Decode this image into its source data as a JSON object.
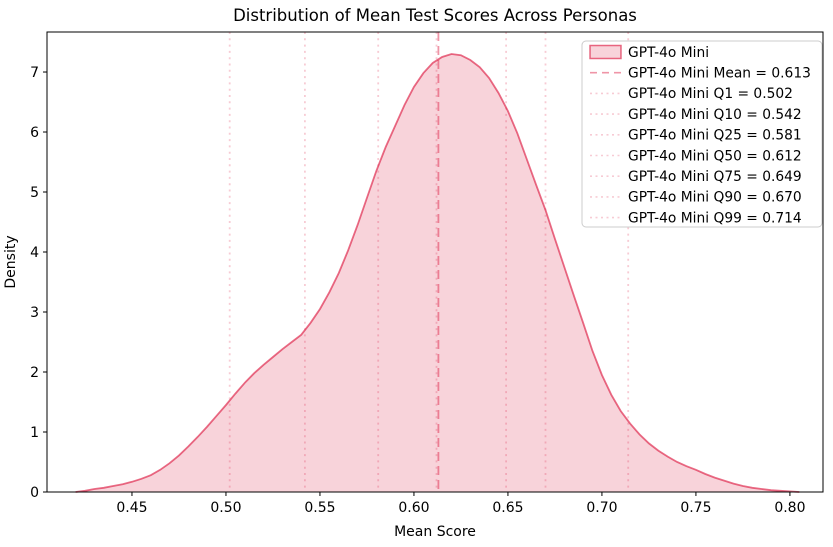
{
  "chart_data": {
    "type": "area",
    "subtype": "kde-density",
    "title": "Distribution of Mean Test Scores Across Personas",
    "xlabel": "Mean Score",
    "ylabel": "Density",
    "xlim": [
      0.4048,
      0.8176
    ],
    "ylim": [
      0,
      7.667
    ],
    "x_ticks": [
      0.45,
      0.5,
      0.55,
      0.6,
      0.65,
      0.7,
      0.75,
      0.8
    ],
    "y_ticks": [
      0,
      1,
      2,
      3,
      4,
      5,
      6,
      7
    ],
    "grid": false,
    "legend_position": "upper right",
    "series": [
      {
        "name": "GPT-4o Mini",
        "kind": "kde",
        "peak": {
          "x": 0.62,
          "density": 7.3
        },
        "points": [
          [
            0.42,
            0.0
          ],
          [
            0.425,
            0.02
          ],
          [
            0.43,
            0.05
          ],
          [
            0.435,
            0.07
          ],
          [
            0.44,
            0.1
          ],
          [
            0.445,
            0.13
          ],
          [
            0.45,
            0.17
          ],
          [
            0.455,
            0.22
          ],
          [
            0.46,
            0.28
          ],
          [
            0.465,
            0.37
          ],
          [
            0.47,
            0.48
          ],
          [
            0.475,
            0.61
          ],
          [
            0.48,
            0.76
          ],
          [
            0.485,
            0.92
          ],
          [
            0.49,
            1.09
          ],
          [
            0.495,
            1.27
          ],
          [
            0.5,
            1.45
          ],
          [
            0.505,
            1.64
          ],
          [
            0.51,
            1.82
          ],
          [
            0.515,
            1.98
          ],
          [
            0.52,
            2.12
          ],
          [
            0.525,
            2.25
          ],
          [
            0.53,
            2.38
          ],
          [
            0.535,
            2.5
          ],
          [
            0.54,
            2.62
          ],
          [
            0.545,
            2.82
          ],
          [
            0.55,
            3.05
          ],
          [
            0.555,
            3.33
          ],
          [
            0.56,
            3.65
          ],
          [
            0.565,
            4.03
          ],
          [
            0.57,
            4.45
          ],
          [
            0.575,
            4.9
          ],
          [
            0.58,
            5.35
          ],
          [
            0.585,
            5.75
          ],
          [
            0.59,
            6.1
          ],
          [
            0.595,
            6.45
          ],
          [
            0.6,
            6.75
          ],
          [
            0.605,
            6.98
          ],
          [
            0.61,
            7.15
          ],
          [
            0.615,
            7.25
          ],
          [
            0.62,
            7.3
          ],
          [
            0.625,
            7.28
          ],
          [
            0.63,
            7.2
          ],
          [
            0.635,
            7.08
          ],
          [
            0.64,
            6.9
          ],
          [
            0.645,
            6.65
          ],
          [
            0.65,
            6.35
          ],
          [
            0.655,
            5.98
          ],
          [
            0.66,
            5.55
          ],
          [
            0.665,
            5.12
          ],
          [
            0.67,
            4.7
          ],
          [
            0.675,
            4.22
          ],
          [
            0.68,
            3.75
          ],
          [
            0.685,
            3.28
          ],
          [
            0.69,
            2.82
          ],
          [
            0.695,
            2.35
          ],
          [
            0.7,
            1.95
          ],
          [
            0.705,
            1.62
          ],
          [
            0.71,
            1.35
          ],
          [
            0.715,
            1.14
          ],
          [
            0.72,
            0.96
          ],
          [
            0.725,
            0.81
          ],
          [
            0.73,
            0.69
          ],
          [
            0.735,
            0.59
          ],
          [
            0.74,
            0.5
          ],
          [
            0.745,
            0.43
          ],
          [
            0.75,
            0.37
          ],
          [
            0.755,
            0.3
          ],
          [
            0.76,
            0.24
          ],
          [
            0.765,
            0.19
          ],
          [
            0.77,
            0.14
          ],
          [
            0.775,
            0.1
          ],
          [
            0.78,
            0.07
          ],
          [
            0.785,
            0.05
          ],
          [
            0.79,
            0.03
          ],
          [
            0.795,
            0.02
          ],
          [
            0.8,
            0.01
          ],
          [
            0.805,
            0.0
          ]
        ]
      }
    ],
    "vlines": [
      {
        "label": "GPT-4o Mini Mean = 0.613",
        "x": 0.613,
        "style": "dashed"
      },
      {
        "label": "GPT-4o Mini Q1 = 0.502",
        "x": 0.502,
        "style": "dotted"
      },
      {
        "label": "GPT-4o Mini Q10 = 0.542",
        "x": 0.542,
        "style": "dotted"
      },
      {
        "label": "GPT-4o Mini Q25 = 0.581",
        "x": 0.581,
        "style": "dotted"
      },
      {
        "label": "GPT-4o Mini Q50 = 0.612",
        "x": 0.612,
        "style": "dotted"
      },
      {
        "label": "GPT-4o Mini Q75 = 0.649",
        "x": 0.649,
        "style": "dotted"
      },
      {
        "label": "GPT-4o Mini Q90 = 0.670",
        "x": 0.67,
        "style": "dotted"
      },
      {
        "label": "GPT-4o Mini Q99 = 0.714",
        "x": 0.714,
        "style": "dotted"
      }
    ],
    "legend_items": [
      {
        "swatch": "patch",
        "label": "GPT-4o Mini"
      },
      {
        "swatch": "dashed",
        "label": "GPT-4o Mini Mean = 0.613"
      },
      {
        "swatch": "dotted",
        "label": "GPT-4o Mini Q1 = 0.502"
      },
      {
        "swatch": "dotted",
        "label": "GPT-4o Mini Q10 = 0.542"
      },
      {
        "swatch": "dotted",
        "label": "GPT-4o Mini Q25 = 0.581"
      },
      {
        "swatch": "dotted",
        "label": "GPT-4o Mini Q50 = 0.612"
      },
      {
        "swatch": "dotted",
        "label": "GPT-4o Mini Q75 = 0.649"
      },
      {
        "swatch": "dotted",
        "label": "GPT-4o Mini Q90 = 0.670"
      },
      {
        "swatch": "dotted",
        "label": "GPT-4o Mini Q99 = 0.714"
      }
    ],
    "colors": {
      "base": "#DC143C",
      "curve_line": "#DC143C9E",
      "curve_fill": "#DC143C30",
      "mean_line": "#DC143C73",
      "quantile_line": "#DC143C38",
      "axis": "#000000",
      "text": "#000000",
      "legend_border": "#CCCCCC",
      "legend_bg": "#FFFFFF"
    }
  }
}
